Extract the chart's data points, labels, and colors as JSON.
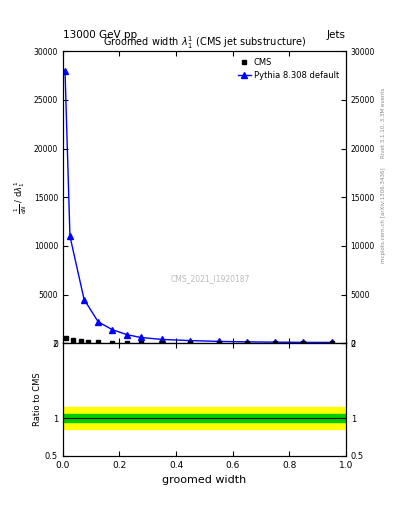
{
  "title_top": "13000 GeV pp",
  "title_right": "Jets",
  "plot_title": "Groomed width $\\lambda_1^1$ (CMS jet substructure)",
  "xlabel": "groomed width",
  "ylabel_ratio": "Ratio to CMS",
  "right_label_top": "Rivet 3.1.10, 3.3M events",
  "right_label_bot": "mcplots.cern.ch [arXiv:1306.3436]",
  "watermark": "CMS_2021_I1920187",
  "cms_x": [
    0.0125,
    0.0375,
    0.0625,
    0.0875,
    0.125,
    0.175,
    0.225,
    0.275,
    0.35,
    0.45,
    0.55,
    0.65,
    0.75,
    0.85,
    0.95
  ],
  "cms_y": [
    500,
    300,
    200,
    150,
    100,
    80,
    60,
    50,
    40,
    35,
    30,
    25,
    22,
    20,
    18
  ],
  "cms_yerr": [
    50,
    30,
    20,
    15,
    10,
    8,
    6,
    5,
    4,
    3,
    3,
    2,
    2,
    2,
    2
  ],
  "pythia_x": [
    0.0075,
    0.025,
    0.075,
    0.125,
    0.175,
    0.225,
    0.275,
    0.35,
    0.45,
    0.55,
    0.65,
    0.75,
    0.85,
    0.95
  ],
  "pythia_y": [
    28000,
    11000,
    4500,
    2200,
    1400,
    900,
    600,
    400,
    280,
    200,
    150,
    120,
    100,
    90
  ],
  "ylim_main": [
    0,
    30000
  ],
  "ylim_ratio": [
    0.5,
    2.0
  ],
  "xlim": [
    0.0,
    1.0
  ],
  "ratio_green_band_lo": 0.95,
  "ratio_green_band_hi": 1.05,
  "ratio_yellow_band_lo": 0.85,
  "ratio_yellow_band_hi": 1.15,
  "ratio_line": 1.0,
  "cms_color": "#000000",
  "pythia_color": "#0000ff",
  "green_band_color": "#00cc00",
  "yellow_band_color": "#ffff00",
  "background_color": "#ffffff",
  "yticks_main": [
    0,
    5000,
    10000,
    15000,
    20000,
    25000,
    30000
  ],
  "ytick_labels_main": [
    "0",
    "5000",
    "10000",
    "15000",
    "20000",
    "25000",
    "30000"
  ],
  "yticks_ratio": [
    0.5,
    1.0,
    2.0
  ],
  "ytick_labels_ratio": [
    "0.5",
    "1",
    "2"
  ]
}
